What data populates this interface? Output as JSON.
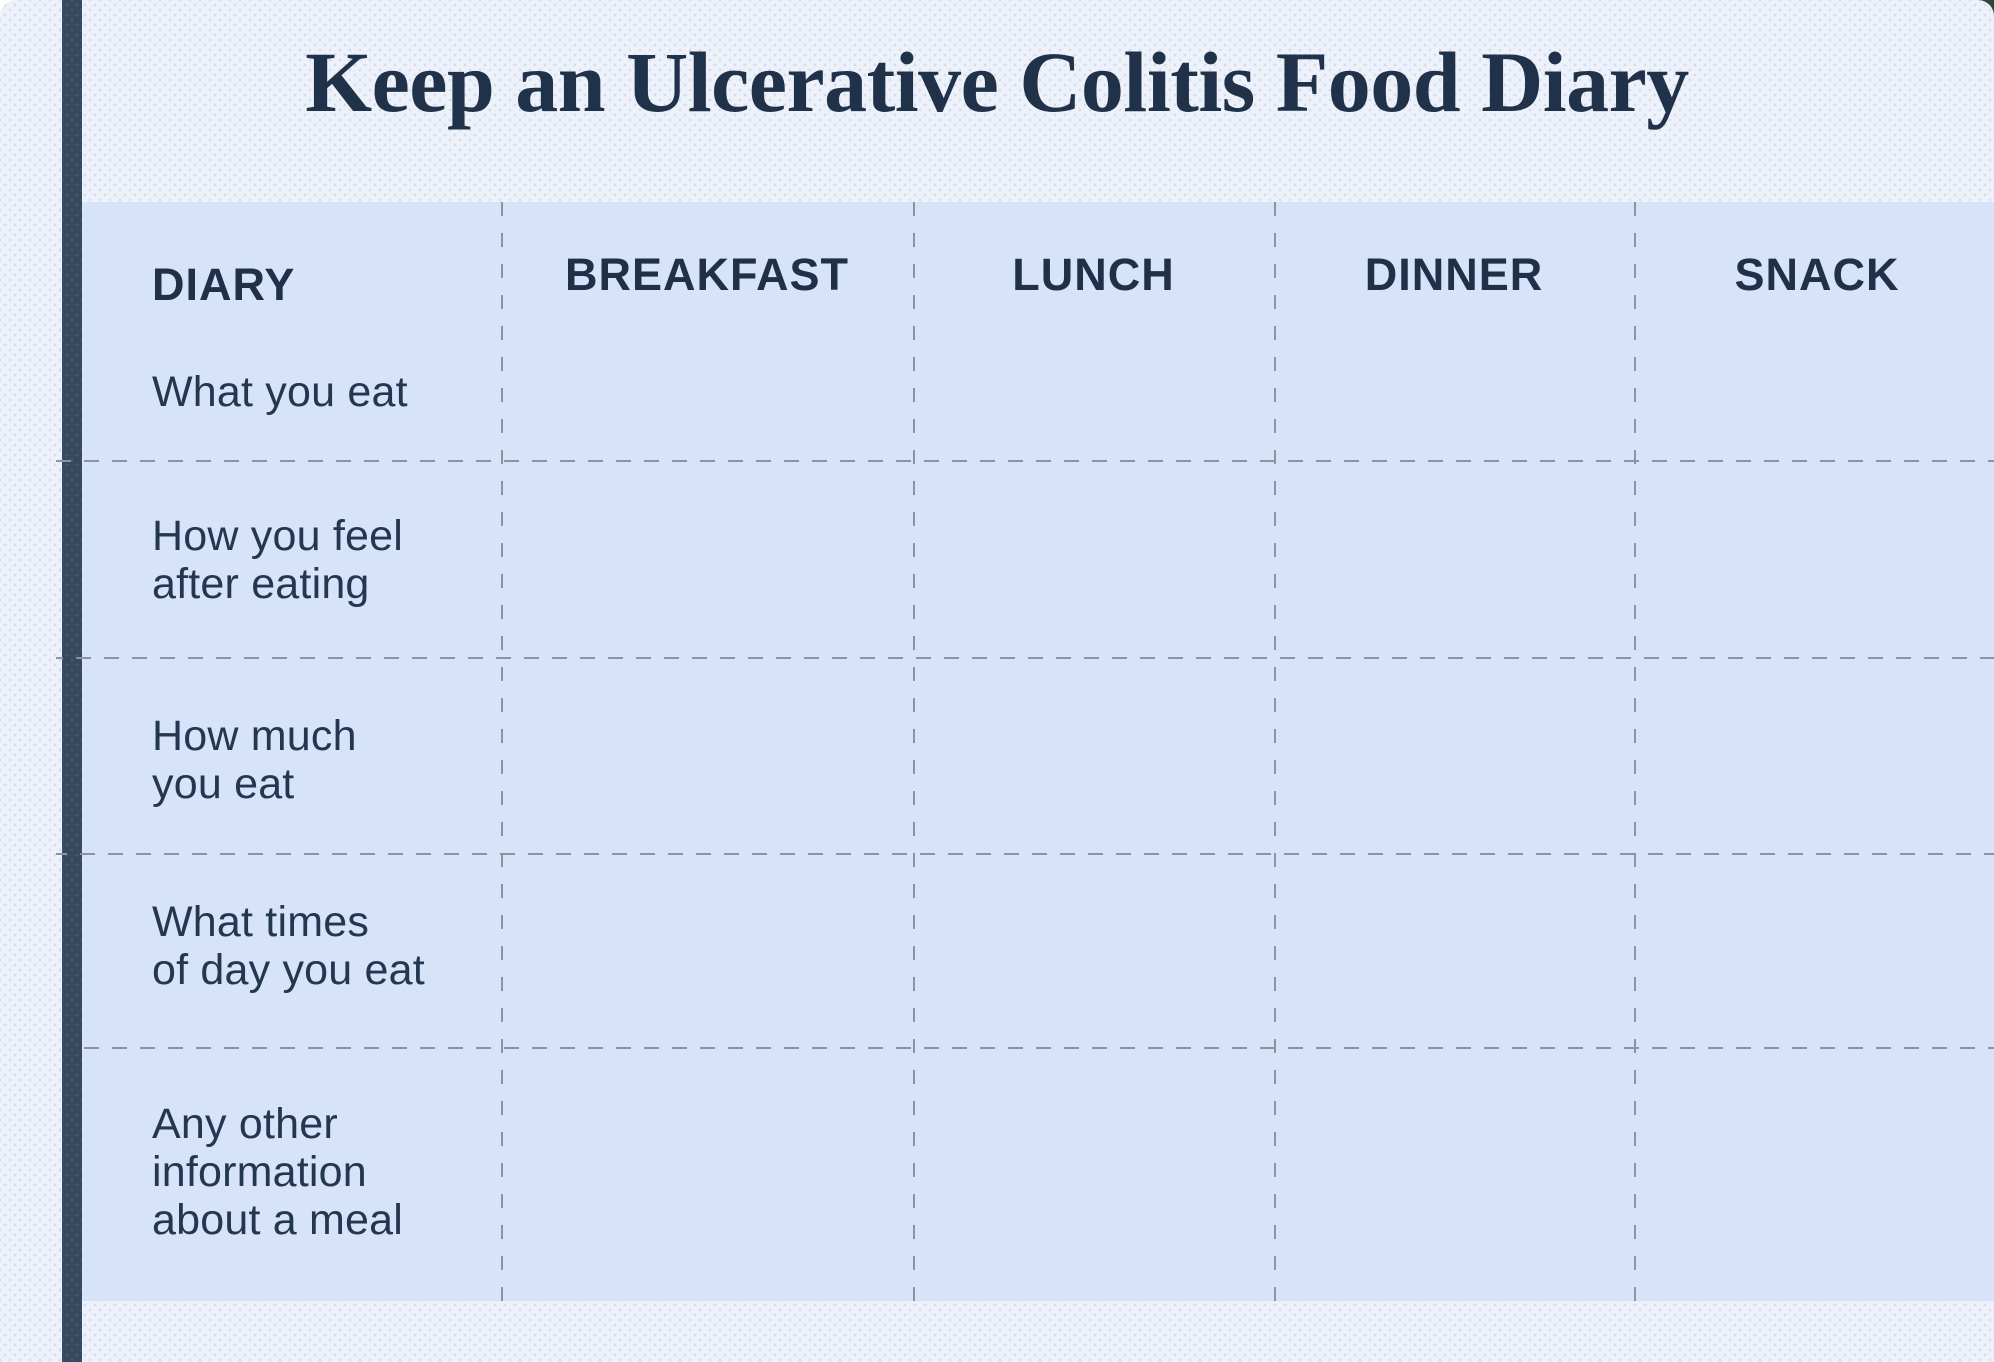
{
  "page": {
    "title": "Keep an Ulcerative Colitis Food Diary"
  },
  "table": {
    "columns": [
      "DIARY",
      "BREAKFAST",
      "LUNCH",
      "DINNER",
      "SNACK"
    ],
    "rows": [
      "What you eat",
      "How you feel\nafter eating",
      "How much\nyou eat",
      "What times\nof day you eat",
      "Any other\ninformation\nabout a meal"
    ]
  },
  "colors": {
    "card_background": "#edf1f9",
    "table_background": "#d7e3f8",
    "spine_bar": "#35495f",
    "title_text": "#20314a",
    "label_text": "#243750",
    "divider_gray": "#8b95a2",
    "corner_accent_green": "#2e4538"
  }
}
